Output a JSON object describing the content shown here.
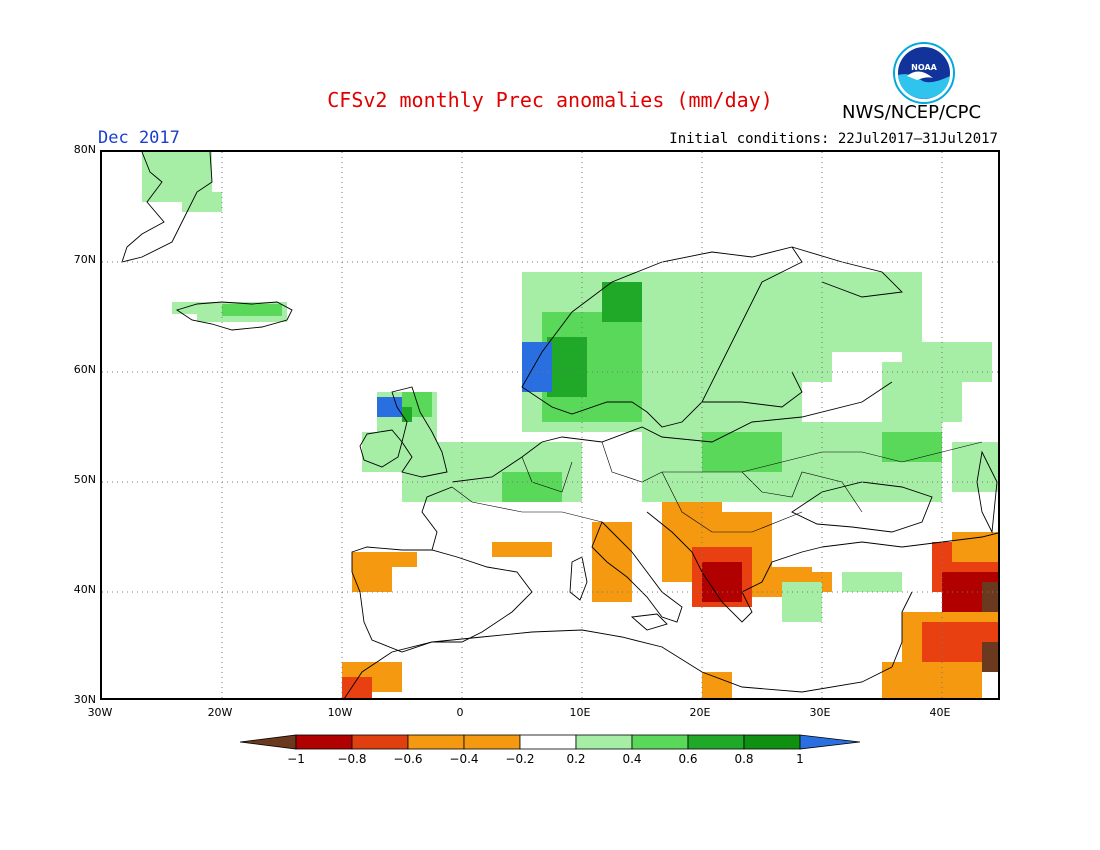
{
  "header": {
    "title": "CFSv2 monthly Prec anomalies (mm/day)",
    "agency": "NWS/NCEP/CPC",
    "month": "Dec 2017",
    "initial_conditions": "Initial conditions: 22Jul2017–31Jul2017",
    "logo_text": "NOAA"
  },
  "axes": {
    "lat_labels": [
      "80N",
      "70N",
      "60N",
      "50N",
      "40N",
      "30N"
    ],
    "lon_labels": [
      "30W",
      "20W",
      "10W",
      "0",
      "10E",
      "20E",
      "30E",
      "40E"
    ]
  },
  "colorbar": {
    "labels": [
      "−1",
      "−0.8",
      "−0.6",
      "−0.4",
      "−0.2",
      "0.2",
      "0.4",
      "0.6",
      "0.8",
      "1"
    ],
    "colors": [
      "#6b3a1e",
      "#b00000",
      "#e04010",
      "#f59a10",
      "#ffffff",
      "#a0eea0",
      "#50d850",
      "#20a820",
      "#109010",
      "#2a6fe0"
    ]
  },
  "map_colors": {
    "green_light": "#a6eea6",
    "green_mid": "#5ad85a",
    "green_dark": "#20a828",
    "blue": "#2a6fe0",
    "orange": "#f59a10",
    "red": "#e84010",
    "dark_red": "#b00000",
    "brown": "#6b3a1e"
  }
}
